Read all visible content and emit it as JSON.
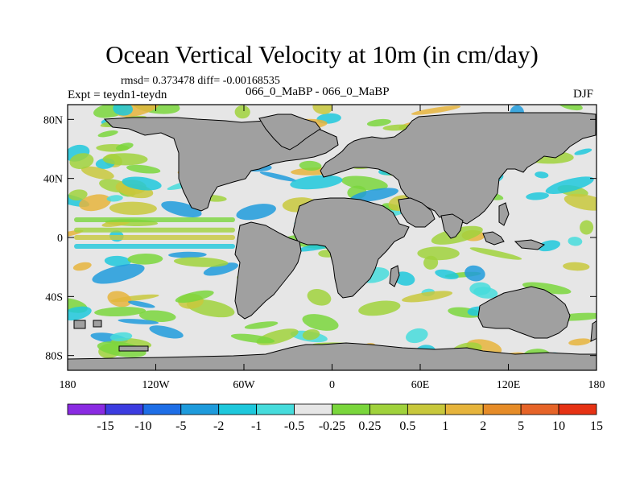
{
  "title": "Ocean Vertical Velocity at 10m (in cm/day)",
  "stats_text": "rmsd= 0.373478 diff= -0.00168535",
  "expt_text": "Expt = teydn1-teydn",
  "case_text": "066_0_MaBP - 066_0_MaBP",
  "season": "DJF",
  "lat_labels": [
    "80N",
    "40N",
    "0",
    "40S",
    "80S"
  ],
  "lat_values": [
    80,
    40,
    0,
    -40,
    -80
  ],
  "lon_labels": [
    "180",
    "120W",
    "60W",
    "0",
    "60E",
    "120E",
    "180"
  ],
  "lon_values": [
    -180,
    -120,
    -60,
    0,
    60,
    120,
    180
  ],
  "colorbar": {
    "labels": [
      "-15",
      "-10",
      "-5",
      "-2",
      "-1",
      "-0.5",
      "-0.25",
      "0.25",
      "0.5",
      "1",
      "2",
      "5",
      "10",
      "15"
    ],
    "colors": [
      "#8a2be2",
      "#3c3ce0",
      "#1e6ee6",
      "#1e9bdc",
      "#1ec8dc",
      "#46dcdc",
      "#e6e6e6",
      "#7ad63c",
      "#a0d23c",
      "#c8c83c",
      "#e6b43c",
      "#e68c28",
      "#e66428",
      "#e63214"
    ]
  },
  "land_color": "#a0a0a0",
  "ocean_color": "#e6e6e6"
}
